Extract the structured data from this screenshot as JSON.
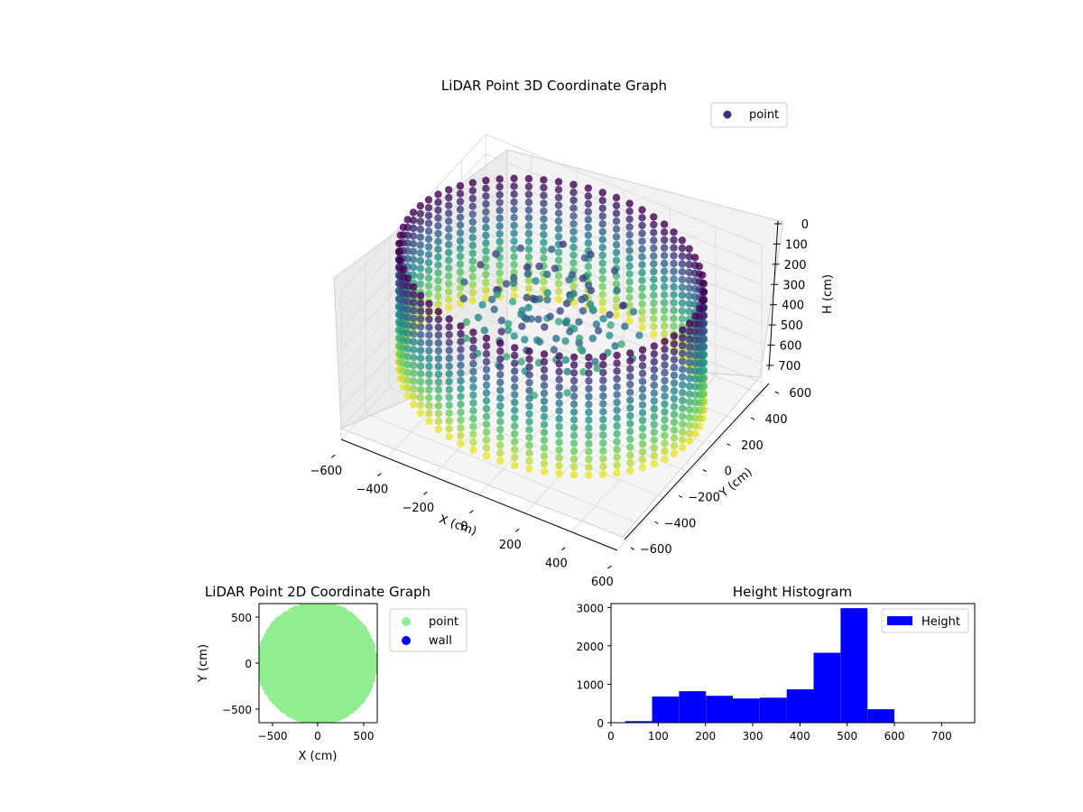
{
  "chart_data": [
    {
      "type": "scatter3d",
      "title": "LiDAR Point 3D Coordinate Graph",
      "xlabel": "X (cm)",
      "ylabel": "Y (cm)",
      "zlabel": "H (cm)",
      "xlim": [
        -650,
        650
      ],
      "ylim": [
        -650,
        650
      ],
      "zlim": [
        760,
        0
      ],
      "xticks": [
        "−600",
        "−400",
        "−200",
        "0",
        "200",
        "400",
        "600"
      ],
      "yticks": [
        "−600",
        "−400",
        "−200",
        "0",
        "200",
        "400",
        "600"
      ],
      "zticks": [
        "0",
        "100",
        "200",
        "300",
        "400",
        "500",
        "600",
        "700"
      ],
      "legend": [
        {
          "label": "point",
          "color": "#472c7a"
        }
      ],
      "legend_position": "upper-right",
      "colormap": "viridis",
      "grid": true,
      "structure": {
        "shape": "cylindrical-wall",
        "radius_cm": 600,
        "height_range_cm": [
          0,
          600
        ]
      }
    },
    {
      "type": "scatter",
      "title": "LiDAR Point 2D Coordinate Graph",
      "xlabel": "X (cm)",
      "ylabel": "Y (cm)",
      "xlim": [
        -650,
        650
      ],
      "ylim": [
        -650,
        650
      ],
      "xticks": [
        "−500",
        "0",
        "500"
      ],
      "yticks": [
        "500",
        "0",
        "−500"
      ],
      "legend": [
        {
          "label": "point",
          "color": "#90ee90"
        },
        {
          "label": "wall",
          "color": "#0000ff"
        }
      ],
      "legend_position": "outside-right",
      "grid": false
    },
    {
      "type": "bar",
      "title": "Height Histogram",
      "xlabel": "",
      "ylabel": "",
      "xlim": [
        0,
        770
      ],
      "ylim": [
        0,
        3100
      ],
      "xticks": [
        "0",
        "100",
        "200",
        "300",
        "400",
        "500",
        "600",
        "700"
      ],
      "yticks": [
        "0",
        "1000",
        "2000",
        "3000"
      ],
      "bin_edges": [
        30,
        87,
        144,
        201,
        258,
        315,
        372,
        429,
        486,
        543,
        600
      ],
      "values": [
        40,
        680,
        820,
        700,
        630,
        650,
        870,
        1820,
        2980,
        350
      ],
      "series_name": "Height",
      "color": "#0000ff",
      "legend_position": "upper-right",
      "grid": false
    }
  ]
}
